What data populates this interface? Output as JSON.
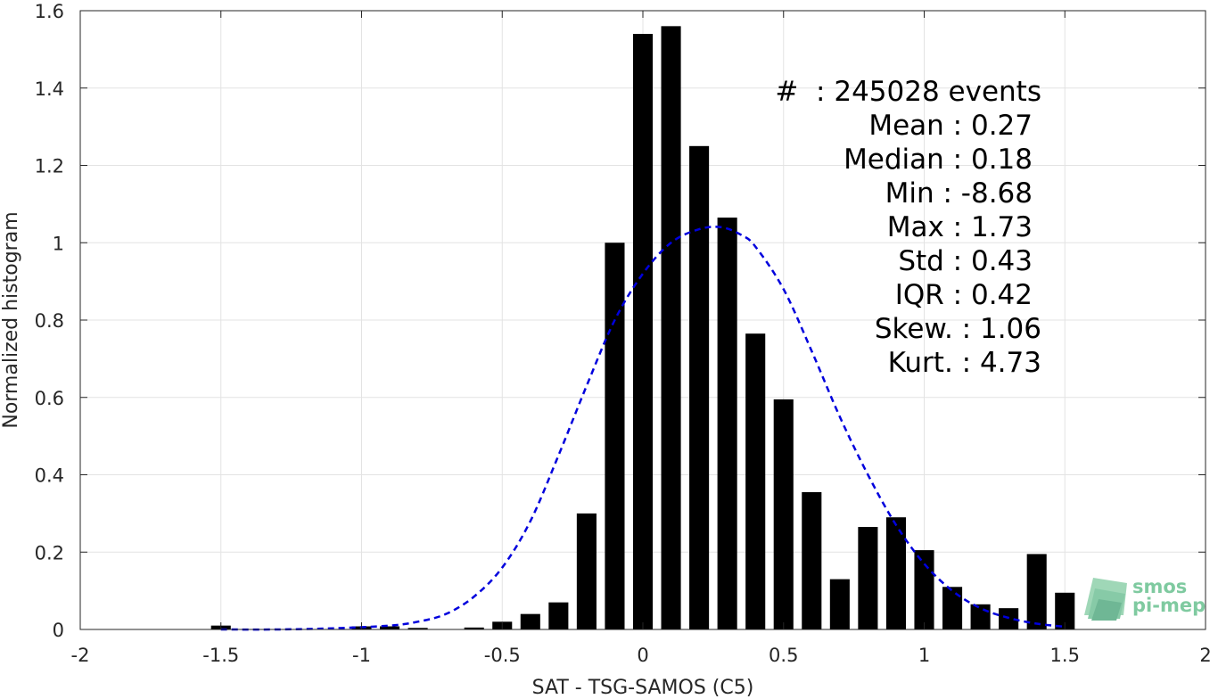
{
  "chart_data": {
    "type": "bar",
    "xlabel": "SAT - TSG-SAMOS (C5)",
    "ylabel": "Normalized histogram",
    "xlim": [
      -2,
      2
    ],
    "ylim": [
      0,
      1.6
    ],
    "xticks": [
      -2,
      -1.5,
      -1,
      -0.5,
      0,
      0.5,
      1,
      1.5,
      2
    ],
    "xtick_labels": [
      "-2",
      "-1.5",
      "-1",
      "-0.5",
      "0",
      "0.5",
      "1",
      "1.5",
      "2"
    ],
    "yticks": [
      0,
      0.2,
      0.4,
      0.6,
      0.8,
      1,
      1.2,
      1.4,
      1.6
    ],
    "ytick_labels": [
      "0",
      "0.2",
      "0.4",
      "0.6",
      "0.8",
      "1",
      "1.2",
      "1.4",
      "1.6"
    ],
    "grid": true,
    "bar_width": 0.07,
    "bar_color": "#000000",
    "bars": [
      {
        "x": -1.5,
        "y": 0.01
      },
      {
        "x": -1.0,
        "y": 0.008
      },
      {
        "x": -0.9,
        "y": 0.008
      },
      {
        "x": -0.8,
        "y": 0.004
      },
      {
        "x": -0.6,
        "y": 0.005
      },
      {
        "x": -0.5,
        "y": 0.02
      },
      {
        "x": -0.4,
        "y": 0.04
      },
      {
        "x": -0.3,
        "y": 0.07
      },
      {
        "x": -0.2,
        "y": 0.3
      },
      {
        "x": -0.1,
        "y": 1.0
      },
      {
        "x": 0.0,
        "y": 1.54
      },
      {
        "x": 0.1,
        "y": 1.56
      },
      {
        "x": 0.2,
        "y": 1.25
      },
      {
        "x": 0.3,
        "y": 1.065
      },
      {
        "x": 0.4,
        "y": 0.765
      },
      {
        "x": 0.5,
        "y": 0.595
      },
      {
        "x": 0.6,
        "y": 0.355
      },
      {
        "x": 0.7,
        "y": 0.13
      },
      {
        "x": 0.8,
        "y": 0.265
      },
      {
        "x": 0.9,
        "y": 0.29
      },
      {
        "x": 1.0,
        "y": 0.205
      },
      {
        "x": 1.1,
        "y": 0.11
      },
      {
        "x": 1.2,
        "y": 0.065
      },
      {
        "x": 1.3,
        "y": 0.055
      },
      {
        "x": 1.4,
        "y": 0.195
      },
      {
        "x": 1.5,
        "y": 0.095
      }
    ],
    "fit_curve": {
      "style": "dashed",
      "color": "#0000dd",
      "points": [
        [
          -1.5,
          0.0
        ],
        [
          -1.3,
          0.0
        ],
        [
          -1.1,
          0.003
        ],
        [
          -0.9,
          0.01
        ],
        [
          -0.8,
          0.02
        ],
        [
          -0.7,
          0.04
        ],
        [
          -0.6,
          0.085
        ],
        [
          -0.5,
          0.16
        ],
        [
          -0.4,
          0.28
        ],
        [
          -0.3,
          0.45
        ],
        [
          -0.2,
          0.63
        ],
        [
          -0.1,
          0.8
        ],
        [
          0.0,
          0.92
        ],
        [
          0.1,
          1.0
        ],
        [
          0.2,
          1.035
        ],
        [
          0.28,
          1.04
        ],
        [
          0.35,
          1.02
        ],
        [
          0.4,
          0.99
        ],
        [
          0.5,
          0.88
        ],
        [
          0.6,
          0.72
        ],
        [
          0.7,
          0.55
        ],
        [
          0.8,
          0.4
        ],
        [
          0.9,
          0.27
        ],
        [
          1.0,
          0.17
        ],
        [
          1.1,
          0.1
        ],
        [
          1.2,
          0.055
        ],
        [
          1.3,
          0.03
        ],
        [
          1.4,
          0.015
        ],
        [
          1.5,
          0.007
        ]
      ]
    },
    "stats": [
      {
        "label": "#  : 245028 events"
      },
      {
        "label": "Mean : 0.27"
      },
      {
        "label": "Median : 0.18"
      },
      {
        "label": "Min : -8.68"
      },
      {
        "label": "Max : 1.73"
      },
      {
        "label": "Std : 0.43"
      },
      {
        "label": "IQR : 0.42"
      },
      {
        "label": "Skew. : 1.06"
      },
      {
        "label": "Kurt. : 4.73"
      }
    ]
  },
  "logo": {
    "line1": "smos",
    "line2": "pi-mep",
    "color": "#5fb98a"
  }
}
